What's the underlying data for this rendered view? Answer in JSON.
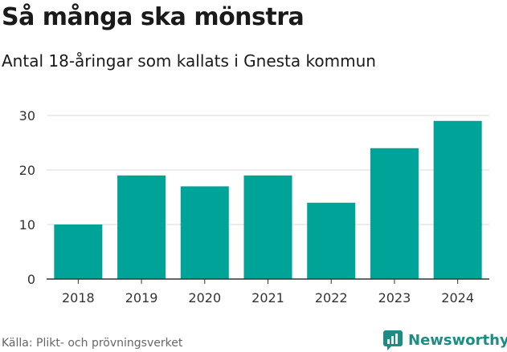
{
  "header": {
    "title": "Så många ska mönstra",
    "subtitle": "Antal 18-åringar som kallats i Gnesta kommun"
  },
  "footer": {
    "source": "Källa: Plikt- och prövningsverket",
    "brand": "Newsworthy"
  },
  "colors": {
    "bar": "#00a398",
    "grid": "#d9d9d9",
    "axis": "#333333",
    "brand": "#1d8c82"
  },
  "chart_data": {
    "type": "bar",
    "title": "Så många ska mönstra",
    "subtitle": "Antal 18-åringar som kallats i Gnesta kommun",
    "categories": [
      "2018",
      "2019",
      "2020",
      "2021",
      "2022",
      "2023",
      "2024"
    ],
    "values": [
      10,
      19,
      17,
      19,
      14,
      24,
      29
    ],
    "ylim": [
      0,
      30
    ],
    "yticks": [
      "0",
      "10",
      "20",
      "30"
    ],
    "xlabel": "",
    "ylabel": "",
    "grid": true,
    "legend": "none"
  }
}
